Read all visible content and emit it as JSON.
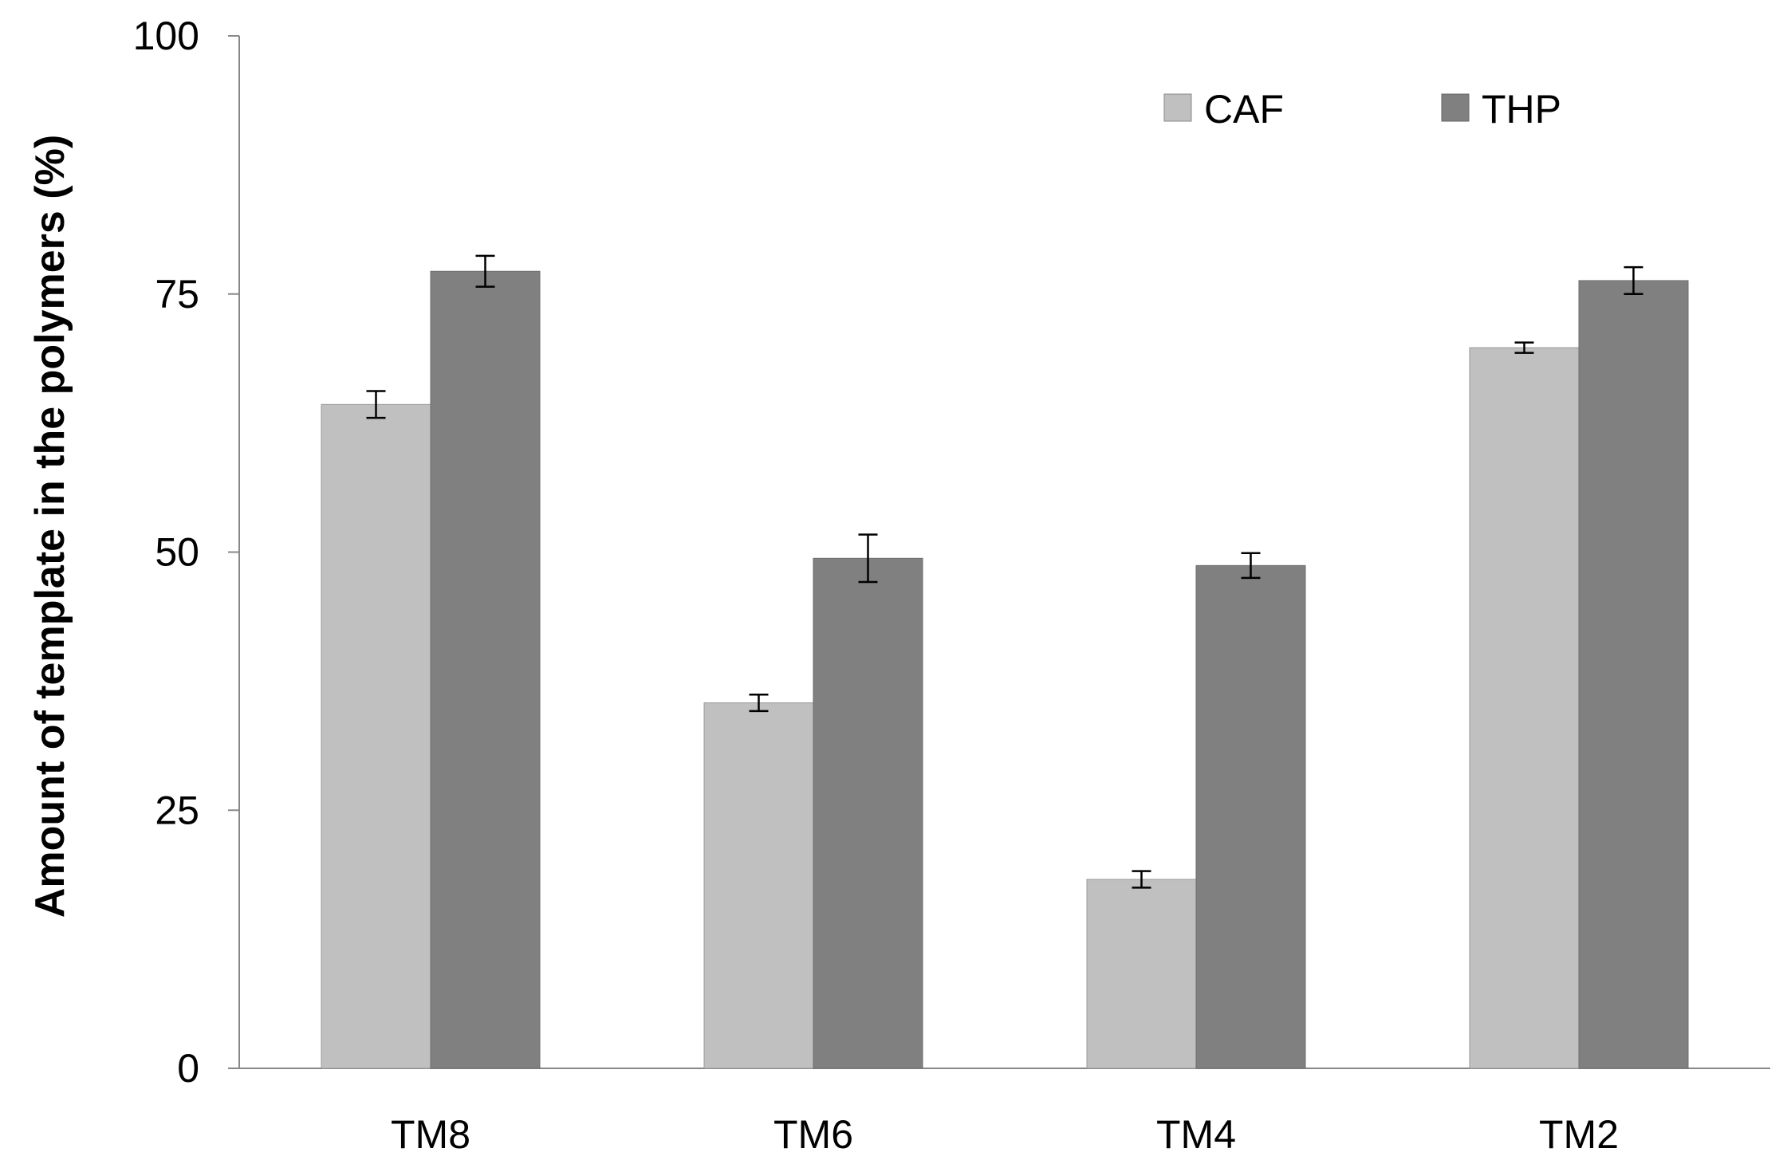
{
  "chart_data": {
    "type": "bar",
    "title": "",
    "xlabel": "",
    "ylabel": "Amount of template in the polymers (%)",
    "ylim": [
      0,
      100
    ],
    "yticks": [
      0,
      25,
      50,
      75,
      100
    ],
    "grid": false,
    "legend_position": "top-right",
    "categories": [
      "TM8",
      "TM6",
      "TM4",
      "TM2"
    ],
    "series": [
      {
        "name": "CAF",
        "color": "#c0c0c0",
        "values": [
          64.3,
          35.4,
          18.3,
          69.8
        ],
        "errors": [
          1.3,
          0.8,
          0.8,
          0.5
        ]
      },
      {
        "name": "THP",
        "color": "#808080",
        "values": [
          77.2,
          49.4,
          48.7,
          76.3
        ],
        "errors": [
          1.5,
          2.3,
          1.2,
          1.3
        ]
      }
    ]
  }
}
